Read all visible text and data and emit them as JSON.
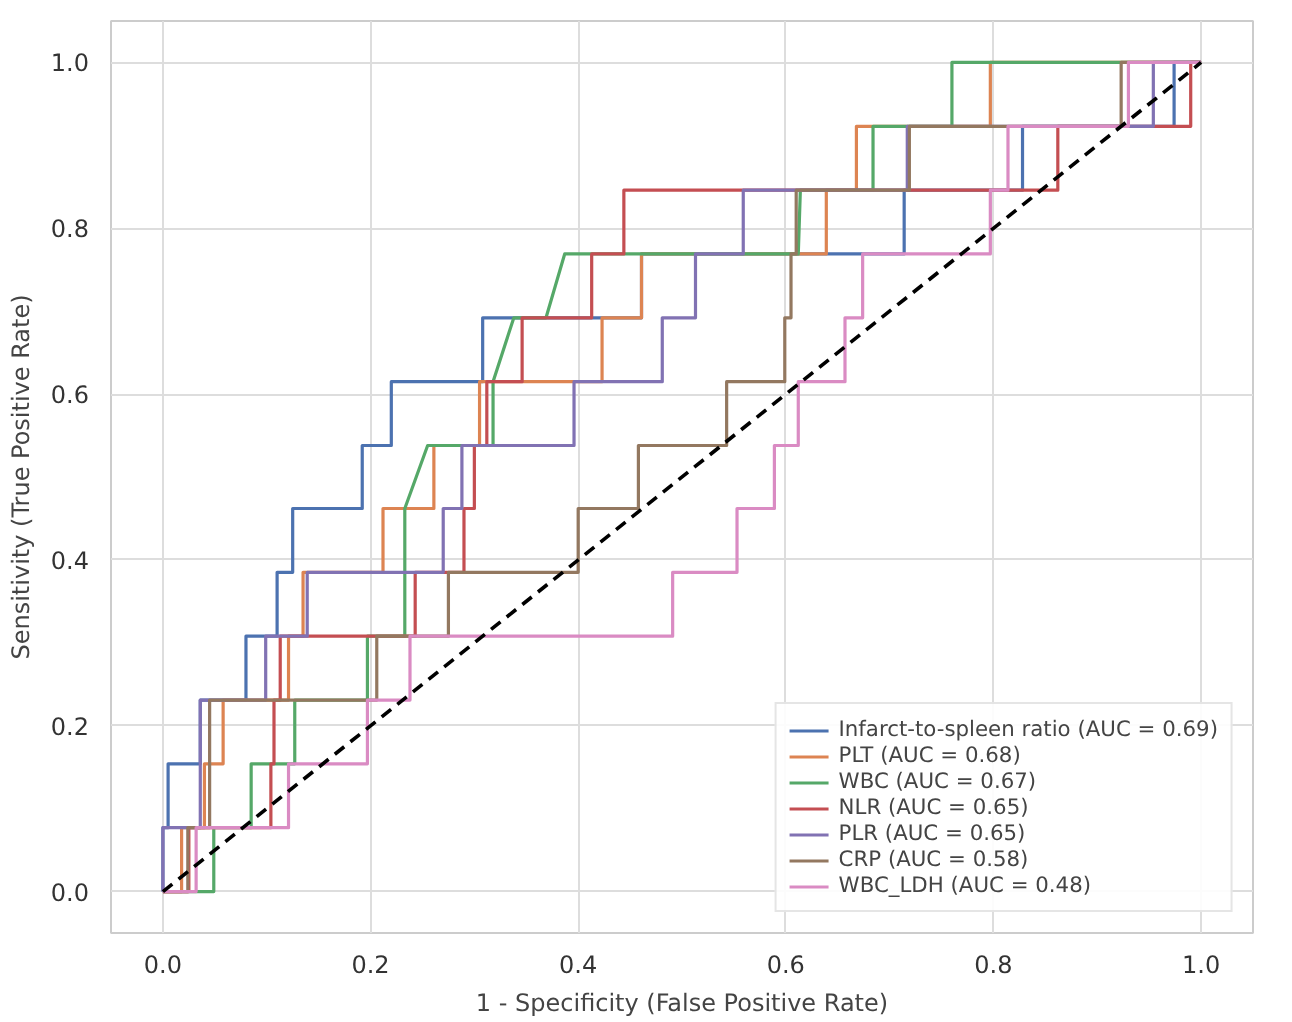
{
  "chart_data": {
    "type": "line",
    "xlabel": "1 - Specificity (False Positive Rate)",
    "ylabel": "Sensitivity (True Positive Rate)",
    "xlim": [
      -0.05,
      1.05
    ],
    "ylim": [
      -0.05,
      1.05
    ],
    "xticks": [
      {
        "value": 0,
        "label": "0.0"
      },
      0.2,
      0.4,
      0.6,
      0.8,
      {
        "value": 1,
        "label": "1.0"
      }
    ],
    "yticks": [
      {
        "value": 0,
        "label": "0.0"
      },
      0.2,
      0.4,
      0.6,
      0.8,
      {
        "value": 1,
        "label": "1.0"
      }
    ],
    "grid": true,
    "legend": "bottom right",
    "line_style": "solid",
    "series": [
      {
        "name": "Infarct-to-spleen ratio (AUC = 0.69)",
        "color": "#4c72b0",
        "x": [
          0,
          0,
          0.005,
          0.005,
          0.036,
          0.036,
          0.08,
          0.08,
          0.11,
          0.11,
          0.125,
          0.125,
          0.192,
          0.192,
          0.22,
          0.22,
          0.308,
          0.308,
          0.461,
          0.461,
          0.714,
          0.714,
          0.828,
          0.828,
          0.974,
          0.974,
          1
        ],
        "values": [
          0,
          0.077,
          0.077,
          0.154,
          0.154,
          0.231,
          0.231,
          0.308,
          0.308,
          0.385,
          0.385,
          0.462,
          0.462,
          0.538,
          0.538,
          0.615,
          0.615,
          0.692,
          0.692,
          0.769,
          0.769,
          0.846,
          0.846,
          0.923,
          0.923,
          1,
          1
        ]
      },
      {
        "name": "PLT (AUC = 0.68)",
        "color": "#dd8452",
        "x": [
          0,
          0.018,
          0.018,
          0.04,
          0.04,
          0.058,
          0.058,
          0.121,
          0.121,
          0.135,
          0.135,
          0.212,
          0.212,
          0.261,
          0.261,
          0.305,
          0.305,
          0.423,
          0.423,
          0.461,
          0.461,
          0.639,
          0.639,
          0.668,
          0.668,
          0.797,
          0.797,
          1
        ],
        "values": [
          0,
          0,
          0.077,
          0.077,
          0.154,
          0.154,
          0.231,
          0.231,
          0.308,
          0.308,
          0.385,
          0.385,
          0.462,
          0.462,
          0.538,
          0.538,
          0.615,
          0.615,
          0.692,
          0.692,
          0.769,
          0.769,
          0.846,
          0.846,
          0.923,
          0.923,
          1,
          1
        ]
      },
      {
        "name": "WBC (AUC = 0.67)",
        "color": "#55a868",
        "x": [
          0,
          0.049,
          0.049,
          0.085,
          0.085,
          0.127,
          0.127,
          0.197,
          0.197,
          0.233,
          0.233,
          0.255,
          0.318,
          0.318,
          0.338,
          0.369,
          0.387,
          0.612,
          0.614,
          0.684,
          0.684,
          0.76,
          0.76,
          1
        ],
        "values": [
          0,
          0,
          0.077,
          0.077,
          0.154,
          0.154,
          0.231,
          0.231,
          0.308,
          0.308,
          0.462,
          0.538,
          0.538,
          0.615,
          0.692,
          0.692,
          0.769,
          0.769,
          0.846,
          0.846,
          0.923,
          0.923,
          1,
          1
        ]
      },
      {
        "name": "NLR (AUC = 0.65)",
        "color": "#c44e52",
        "x": [
          0,
          0.025,
          0.025,
          0.104,
          0.104,
          0.107,
          0.107,
          0.113,
          0.113,
          0.243,
          0.243,
          0.29,
          0.29,
          0.3,
          0.3,
          0.312,
          0.312,
          0.346,
          0.346,
          0.413,
          0.413,
          0.444,
          0.444,
          0.862,
          0.862,
          0.99,
          0.99,
          1
        ],
        "values": [
          0,
          0,
          0.077,
          0.077,
          0.154,
          0.154,
          0.231,
          0.231,
          0.308,
          0.308,
          0.385,
          0.385,
          0.462,
          0.462,
          0.538,
          0.538,
          0.615,
          0.615,
          0.692,
          0.692,
          0.769,
          0.769,
          0.846,
          0.846,
          0.923,
          0.923,
          1,
          1
        ]
      },
      {
        "name": "PLR (AUC = 0.65)",
        "color": "#8172b3",
        "x": [
          0,
          0,
          0.036,
          0.036,
          0.099,
          0.099,
          0.139,
          0.139,
          0.149,
          0.149,
          0.27,
          0.27,
          0.288,
          0.288,
          0.396,
          0.396,
          0.481,
          0.481,
          0.513,
          0.513,
          0.559,
          0.559,
          0.717,
          0.717,
          0.954,
          0.954,
          1
        ],
        "values": [
          0,
          0.077,
          0.077,
          0.231,
          0.231,
          0.308,
          0.308,
          0.385,
          0.385,
          0.385,
          0.385,
          0.462,
          0.462,
          0.538,
          0.538,
          0.615,
          0.615,
          0.692,
          0.692,
          0.769,
          0.769,
          0.846,
          0.846,
          0.923,
          0.923,
          1,
          1
        ]
      },
      {
        "name": "CRP (AUC = 0.58)",
        "color": "#937860",
        "x": [
          0,
          0.024,
          0.024,
          0.045,
          0.045,
          0.206,
          0.206,
          0.275,
          0.275,
          0.4,
          0.4,
          0.458,
          0.458,
          0.543,
          0.543,
          0.599,
          0.599,
          0.605,
          0.605,
          0.61,
          0.61,
          0.719,
          0.719,
          0.923,
          0.923,
          1
        ],
        "values": [
          0,
          0,
          0.077,
          0.077,
          0.231,
          0.231,
          0.308,
          0.308,
          0.385,
          0.385,
          0.462,
          0.462,
          0.538,
          0.538,
          0.615,
          0.615,
          0.692,
          0.692,
          0.769,
          0.769,
          0.846,
          0.846,
          0.923,
          0.923,
          1,
          1
        ]
      },
      {
        "name": "WBC_LDH (AUC = 0.48)",
        "color": "#da8bc3",
        "x": [
          0,
          0.032,
          0.032,
          0.121,
          0.121,
          0.197,
          0.197,
          0.238,
          0.238,
          0.491,
          0.491,
          0.553,
          0.553,
          0.589,
          0.589,
          0.612,
          0.612,
          0.657,
          0.657,
          0.674,
          0.674,
          0.797,
          0.797,
          0.814,
          0.814,
          0.93,
          0.93,
          1
        ],
        "values": [
          0,
          0,
          0.077,
          0.077,
          0.154,
          0.154,
          0.231,
          0.231,
          0.308,
          0.308,
          0.385,
          0.385,
          0.462,
          0.462,
          0.538,
          0.538,
          0.615,
          0.615,
          0.692,
          0.692,
          0.769,
          0.769,
          0.846,
          0.846,
          0.923,
          0.923,
          1,
          1
        ]
      },
      {
        "color": "#000000",
        "line_style": "dashed",
        "x": [
          0,
          1
        ],
        "values": [
          0,
          1
        ]
      }
    ]
  }
}
